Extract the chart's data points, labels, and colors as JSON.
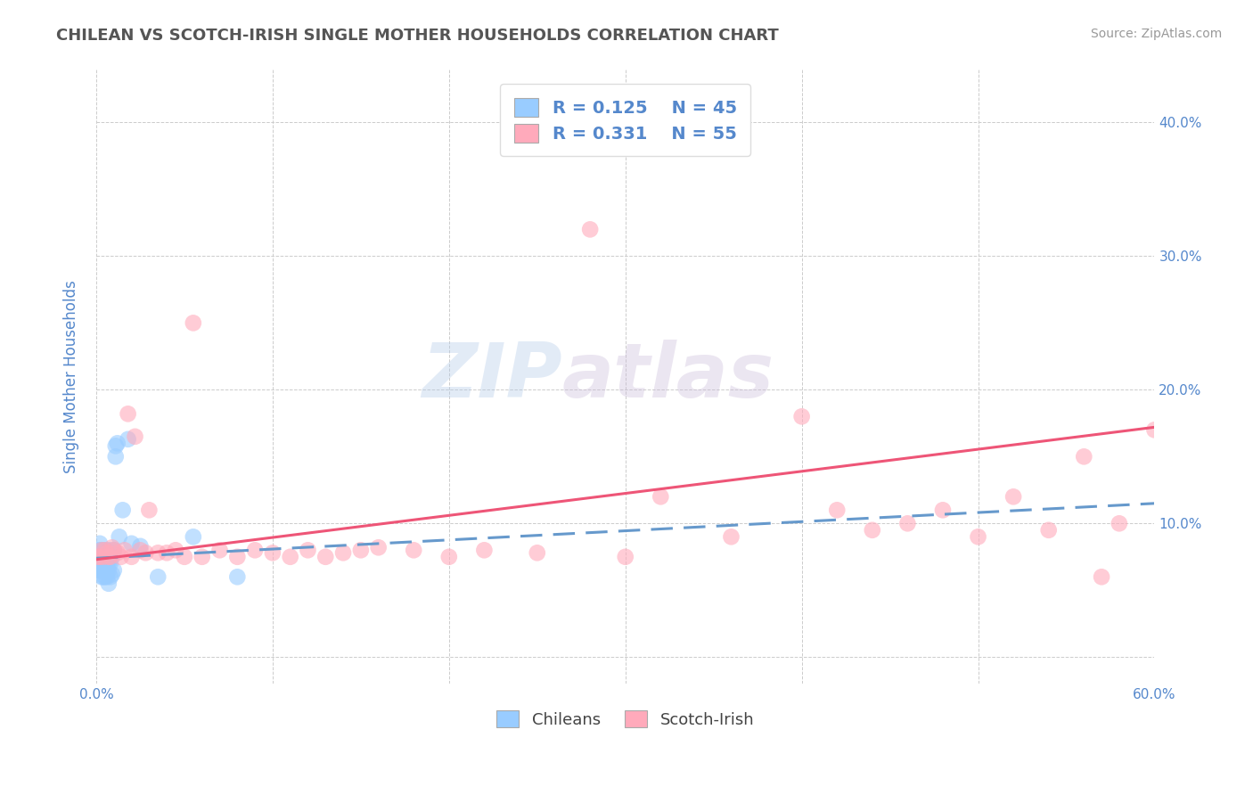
{
  "title": "CHILEAN VS SCOTCH-IRISH SINGLE MOTHER HOUSEHOLDS CORRELATION CHART",
  "source": "Source: ZipAtlas.com",
  "ylabel": "Single Mother Households",
  "xlim": [
    0.0,
    0.6
  ],
  "ylim": [
    -0.02,
    0.44
  ],
  "xticks": [
    0.0,
    0.1,
    0.2,
    0.3,
    0.4,
    0.5,
    0.6
  ],
  "xticklabels": [
    "0.0%",
    "",
    "",
    "",
    "",
    "",
    "60.0%"
  ],
  "yticks": [
    0.0,
    0.1,
    0.2,
    0.3,
    0.4
  ],
  "yticklabels_right": [
    "",
    "10.0%",
    "20.0%",
    "30.0%",
    "40.0%"
  ],
  "legend_r1": "R = 0.125",
  "legend_n1": "N = 45",
  "legend_r2": "R = 0.331",
  "legend_n2": "N = 55",
  "chilean_color": "#99ccff",
  "scotch_color": "#ffaabb",
  "trend_chilean_color": "#6699cc",
  "trend_scotch_color": "#ee5577",
  "watermark_zip": "ZIP",
  "watermark_atlas": "atlas",
  "background_color": "#ffffff",
  "grid_color": "#cccccc",
  "title_color": "#555555",
  "source_color": "#999999",
  "axis_label_color": "#5588cc",
  "legend_value_color": "#5588cc",
  "legend_dark_color": "#444444",
  "chilean_scatter_x": [
    0.001,
    0.001,
    0.002,
    0.002,
    0.002,
    0.003,
    0.003,
    0.003,
    0.003,
    0.003,
    0.004,
    0.004,
    0.004,
    0.004,
    0.004,
    0.005,
    0.005,
    0.005,
    0.005,
    0.006,
    0.006,
    0.006,
    0.006,
    0.007,
    0.007,
    0.007,
    0.007,
    0.008,
    0.008,
    0.008,
    0.009,
    0.009,
    0.01,
    0.01,
    0.011,
    0.011,
    0.012,
    0.013,
    0.015,
    0.018,
    0.02,
    0.025,
    0.035,
    0.055,
    0.08
  ],
  "chilean_scatter_y": [
    0.075,
    0.08,
    0.065,
    0.075,
    0.085,
    0.06,
    0.065,
    0.07,
    0.075,
    0.08,
    0.06,
    0.065,
    0.07,
    0.075,
    0.08,
    0.06,
    0.065,
    0.068,
    0.075,
    0.06,
    0.065,
    0.07,
    0.08,
    0.055,
    0.065,
    0.07,
    0.075,
    0.06,
    0.07,
    0.08,
    0.062,
    0.075,
    0.065,
    0.08,
    0.15,
    0.158,
    0.16,
    0.09,
    0.11,
    0.163,
    0.085,
    0.083,
    0.06,
    0.09,
    0.06
  ],
  "scotch_scatter_x": [
    0.001,
    0.002,
    0.003,
    0.004,
    0.005,
    0.006,
    0.007,
    0.008,
    0.009,
    0.01,
    0.012,
    0.014,
    0.016,
    0.018,
    0.02,
    0.022,
    0.025,
    0.028,
    0.03,
    0.035,
    0.04,
    0.045,
    0.05,
    0.055,
    0.06,
    0.07,
    0.08,
    0.09,
    0.1,
    0.11,
    0.12,
    0.13,
    0.14,
    0.15,
    0.16,
    0.18,
    0.2,
    0.22,
    0.25,
    0.28,
    0.3,
    0.32,
    0.36,
    0.4,
    0.42,
    0.44,
    0.46,
    0.48,
    0.5,
    0.52,
    0.54,
    0.56,
    0.57,
    0.58,
    0.6
  ],
  "scotch_scatter_y": [
    0.075,
    0.075,
    0.08,
    0.075,
    0.08,
    0.078,
    0.075,
    0.075,
    0.082,
    0.08,
    0.078,
    0.075,
    0.08,
    0.182,
    0.075,
    0.165,
    0.08,
    0.078,
    0.11,
    0.078,
    0.078,
    0.08,
    0.075,
    0.25,
    0.075,
    0.08,
    0.075,
    0.08,
    0.078,
    0.075,
    0.08,
    0.075,
    0.078,
    0.08,
    0.082,
    0.08,
    0.075,
    0.08,
    0.078,
    0.32,
    0.075,
    0.12,
    0.09,
    0.18,
    0.11,
    0.095,
    0.1,
    0.11,
    0.09,
    0.12,
    0.095,
    0.15,
    0.06,
    0.1,
    0.17
  ],
  "trend_chilean_x0": 0.0,
  "trend_chilean_x1": 0.6,
  "trend_chilean_y0": 0.074,
  "trend_chilean_y1": 0.115,
  "trend_scotch_x0": 0.0,
  "trend_scotch_x1": 0.6,
  "trend_scotch_y0": 0.073,
  "trend_scotch_y1": 0.172
}
